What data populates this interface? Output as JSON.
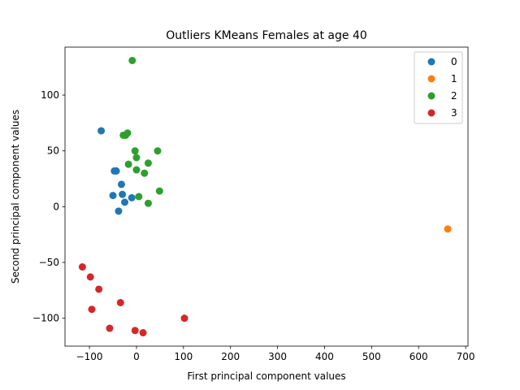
{
  "chart_data": {
    "type": "scatter",
    "title": "Outliers KMeans Females at age 40",
    "xlabel": "First principal component values",
    "ylabel": "Second principal component values",
    "xlim": [
      -152,
      705
    ],
    "ylim": [
      -125,
      143
    ],
    "xticks": [
      -100,
      0,
      100,
      200,
      300,
      400,
      500,
      600,
      700
    ],
    "xtick_labels": [
      "−100",
      "0",
      "100",
      "200",
      "300",
      "400",
      "500",
      "600",
      "700"
    ],
    "yticks": [
      -100,
      -50,
      0,
      50,
      100
    ],
    "ytick_labels": [
      "−100",
      "−50",
      "0",
      "50",
      "100"
    ],
    "grid": false,
    "legend_position": "top-right",
    "series": [
      {
        "name": "0",
        "color": "#1f77b4",
        "points": [
          [
            -75,
            68
          ],
          [
            -47,
            32
          ],
          [
            -43,
            32
          ],
          [
            -32,
            20
          ],
          [
            -30,
            11
          ],
          [
            -50,
            10
          ],
          [
            -10,
            8
          ],
          [
            -25,
            4
          ],
          [
            -38,
            -4
          ]
        ]
      },
      {
        "name": "1",
        "color": "#ff7f0e",
        "points": [
          [
            662,
            -20
          ]
        ]
      },
      {
        "name": "2",
        "color": "#2ca02c",
        "points": [
          [
            -9,
            131
          ],
          [
            -28,
            64
          ],
          [
            -23,
            64
          ],
          [
            -19,
            66
          ],
          [
            -3,
            50
          ],
          [
            0,
            44
          ],
          [
            45,
            50
          ],
          [
            -17,
            38
          ],
          [
            0,
            33
          ],
          [
            25,
            39
          ],
          [
            17,
            30
          ],
          [
            49,
            14
          ],
          [
            5,
            9
          ],
          [
            25,
            3
          ]
        ]
      },
      {
        "name": "3",
        "color": "#d62728",
        "points": [
          [
            -115,
            -54
          ],
          [
            -98,
            -63
          ],
          [
            -80,
            -74
          ],
          [
            -34,
            -86
          ],
          [
            -95,
            -92
          ],
          [
            -57,
            -109
          ],
          [
            -3,
            -111
          ],
          [
            14,
            -113
          ],
          [
            102,
            -100
          ]
        ]
      }
    ]
  }
}
